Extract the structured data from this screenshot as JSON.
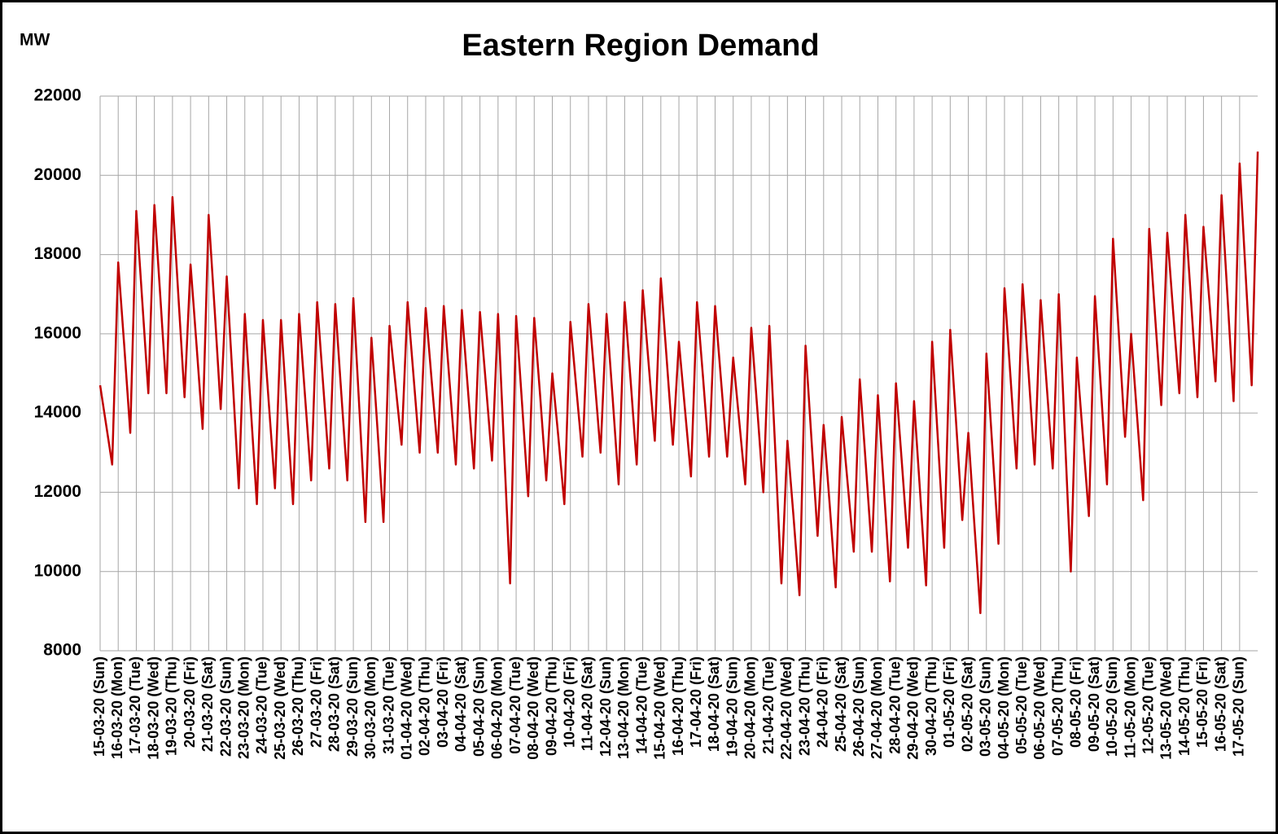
{
  "chart_data": {
    "type": "line",
    "title": "Eastern Region Demand",
    "y_label": "MW",
    "color": "#c00000",
    "grid": true,
    "ylim": [
      8000,
      22000
    ],
    "yticks": [
      8000,
      10000,
      12000,
      14000,
      16000,
      18000,
      20000,
      22000
    ],
    "categories": [
      "15-03-20 (Sun)",
      null,
      null,
      "16-03-20 (Mon)",
      null,
      null,
      "17-03-20 (Tue)",
      null,
      null,
      "18-03-20 (Wed)",
      null,
      null,
      "19-03-20 (Thu)",
      null,
      null,
      "20-03-20 (Fri)",
      null,
      null,
      "21-03-20 (Sat)",
      null,
      null,
      "22-03-20 (Sun)",
      null,
      null,
      "23-03-20 (Mon)",
      null,
      null,
      "24-03-20 (Tue)",
      null,
      null,
      "25-03-20 (Wed)",
      null,
      null,
      "26-03-20 (Thu)",
      null,
      null,
      "27-03-20 (Fri)",
      null,
      null,
      "28-03-20 (Sat)",
      null,
      null,
      "29-03-20 (Sun)",
      null,
      null,
      "30-03-20 (Mon)",
      null,
      null,
      "31-03-20 (Tue)",
      null,
      null,
      "01-04-20 (Wed)",
      null,
      null,
      "02-04-20 (Thu)",
      null,
      null,
      "03-04-20 (Fri)",
      null,
      null,
      "04-04-20 (Sat)",
      null,
      null,
      "05-04-20 (Sun)",
      null,
      null,
      "06-04-20 (Mon)",
      null,
      null,
      "07-04-20 (Tue)",
      null,
      null,
      "08-04-20 (Wed)",
      null,
      null,
      "09-04-20 (Thu)",
      null,
      null,
      "10-04-20 (Fri)",
      null,
      null,
      "11-04-20 (Sat)",
      null,
      null,
      "12-04-20 (Sun)",
      null,
      null,
      "13-04-20 (Mon)",
      null,
      null,
      "14-04-20 (Tue)",
      null,
      null,
      "15-04-20 (Wed)",
      null,
      null,
      "16-04-20 (Thu)",
      null,
      null,
      "17-04-20 (Fri)",
      null,
      null,
      "18-04-20 (Sat)",
      null,
      null,
      "19-04-20 (Sun)",
      null,
      null,
      "20-04-20 (Mon)",
      null,
      null,
      "21-04-20 (Tue)",
      null,
      null,
      "22-04-20 (Wed)",
      null,
      null,
      "23-04-20 (Thu)",
      null,
      null,
      "24-04-20 (Fri)",
      null,
      null,
      "25-04-20 (Sat)",
      null,
      null,
      "26-04-20 (Sun)",
      null,
      null,
      "27-04-20 (Mon)",
      null,
      null,
      "28-04-20 (Tue)",
      null,
      null,
      "29-04-20 (Wed)",
      null,
      null,
      "30-04-20 (Thu)",
      null,
      null,
      "01-05-20 (Fri)",
      null,
      null,
      "02-05-20 (Sat)",
      null,
      null,
      "03-05-20 (Sun)",
      null,
      null,
      "04-05-20 (Mon)",
      null,
      null,
      "05-05-20 (Tue)",
      null,
      null,
      "06-05-20 (Wed)",
      null,
      null,
      "07-05-20 (Thu)",
      null,
      null,
      "08-05-20 (Fri)",
      null,
      null,
      "09-05-20 (Sat)",
      null,
      null,
      "10-05-20 (Sun)",
      null,
      null,
      "11-05-20 (Mon)",
      null,
      null,
      "12-05-20 (Tue)",
      null,
      null,
      "13-05-20 (Wed)",
      null,
      null,
      "14-05-20 (Thu)",
      null,
      null,
      "15-05-20 (Fri)",
      null,
      null,
      "16-05-20 (Sat)",
      null,
      null,
      "17-05-20 (Sun)",
      null,
      null,
      null
    ],
    "values": [
      14700,
      13700,
      12700,
      17800,
      15700,
      13500,
      19100,
      16800,
      14500,
      19250,
      16900,
      14500,
      19450,
      16900,
      14400,
      17750,
      15700,
      13600,
      19000,
      16600,
      14100,
      17450,
      14800,
      12100,
      16500,
      14100,
      11700,
      16350,
      14200,
      12100,
      16350,
      14000,
      11700,
      16500,
      14400,
      12300,
      16800,
      14700,
      12600,
      16750,
      14500,
      12300,
      16900,
      14100,
      11250,
      15900,
      13600,
      11250,
      16200,
      14700,
      13200,
      16800,
      14900,
      13000,
      16650,
      14800,
      13000,
      16700,
      14700,
      12700,
      16600,
      14600,
      12600,
      16550,
      14700,
      12800,
      16500,
      13100,
      9700,
      16450,
      14200,
      11900,
      16400,
      14400,
      12300,
      15000,
      13400,
      11700,
      16300,
      14600,
      12900,
      16750,
      14900,
      13000,
      16500,
      14400,
      12200,
      16800,
      14800,
      12700,
      17100,
      15200,
      13300,
      17400,
      15300,
      13200,
      15800,
      14100,
      12400,
      16800,
      14900,
      12900,
      16700,
      14800,
      12900,
      15400,
      13800,
      12200,
      16150,
      14100,
      12000,
      16200,
      13000,
      9700,
      13300,
      11400,
      9400,
      15700,
      13300,
      10900,
      13700,
      11700,
      9600,
      13900,
      12200,
      10500,
      14850,
      12700,
      10500,
      14450,
      12100,
      9750,
      14750,
      12700,
      10600,
      14300,
      12000,
      9650,
      15800,
      13200,
      10600,
      16100,
      13700,
      11300,
      13500,
      11200,
      8950,
      15500,
      13100,
      10700,
      17150,
      14900,
      12600,
      17250,
      15000,
      12700,
      16850,
      14700,
      12600,
      17000,
      13500,
      10000,
      15400,
      13400,
      11400,
      16950,
      14600,
      12200,
      18400,
      15900,
      13400,
      16000,
      13900,
      11800,
      18650,
      16400,
      14200,
      18550,
      16500,
      14500,
      19000,
      16700,
      14400,
      18700,
      16800,
      14800,
      19500,
      16900,
      14300,
      20300,
      17500,
      14700,
      20600
    ]
  }
}
